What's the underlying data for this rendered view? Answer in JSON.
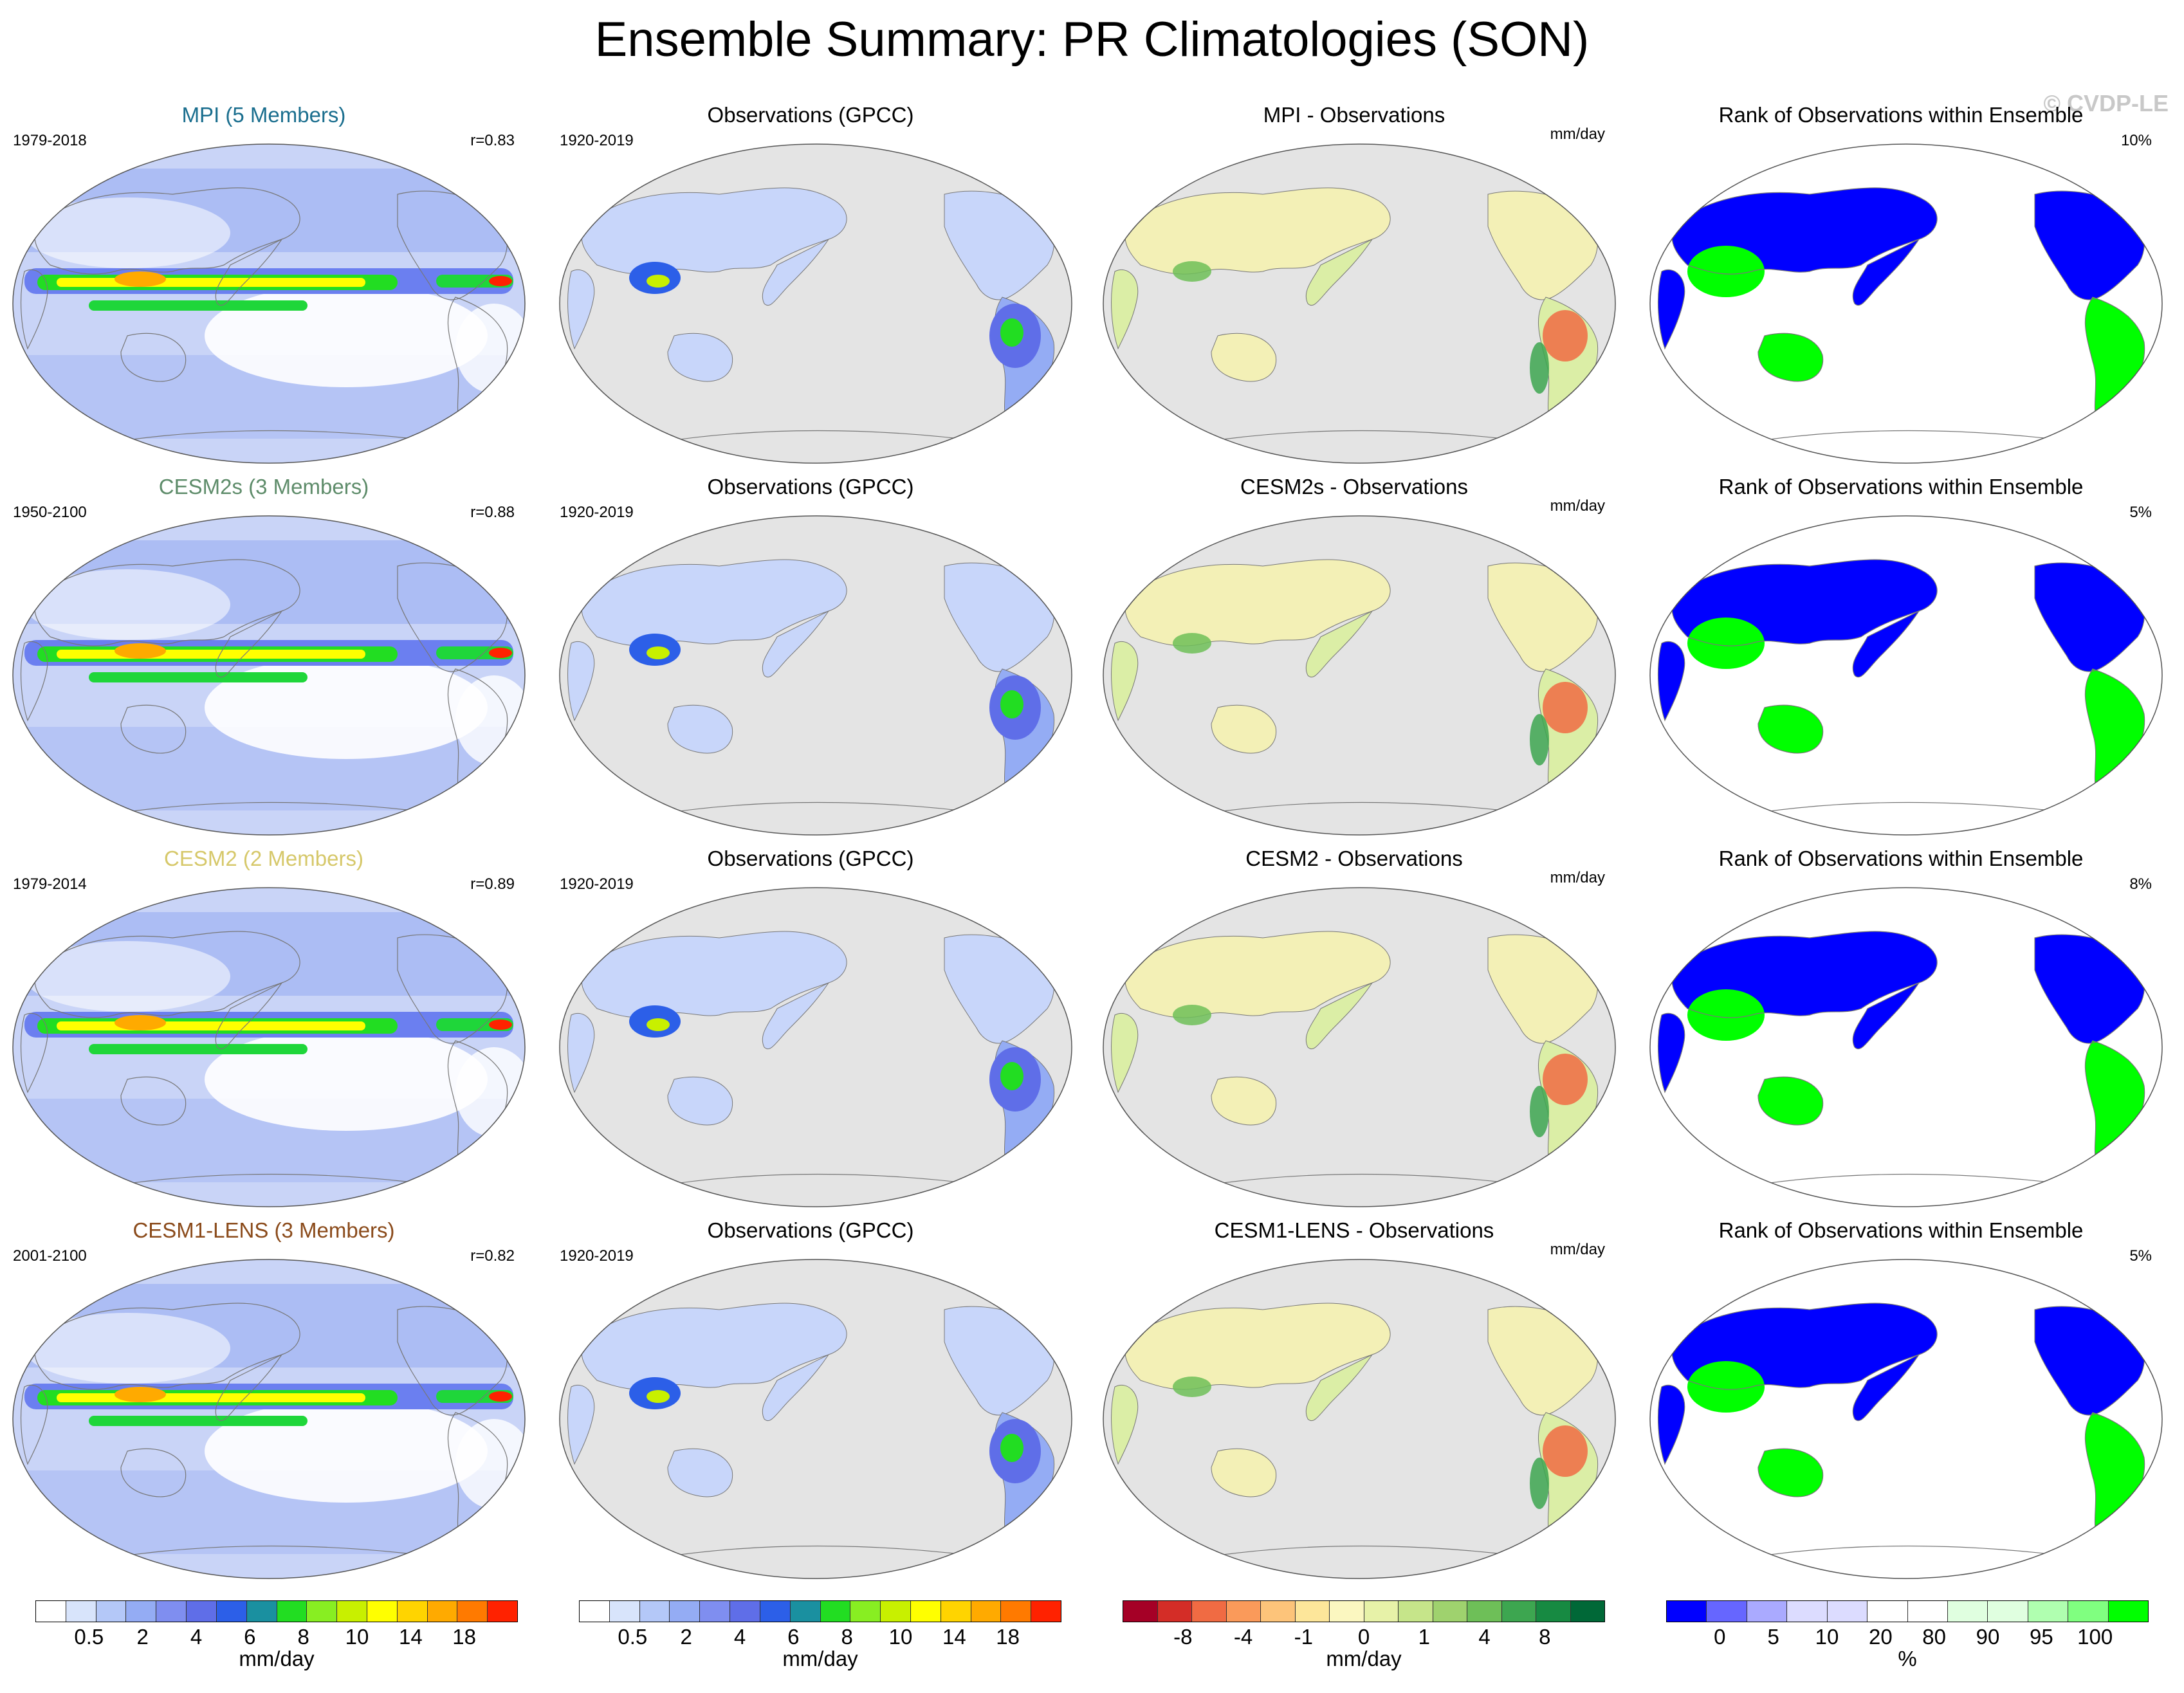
{
  "title": "Ensemble Summary: PR Climatologies (SON)",
  "copyright": "© CVDP-LE",
  "rows": [
    {
      "model_title": "MPI (5 Members)",
      "model_color": "#1a6e8e",
      "model_years": "1979-2018",
      "r_value": "r=0.83",
      "obs_title": "Observations (GPCC)",
      "obs_years": "1920-2019",
      "diff_title": "MPI - Observations",
      "diff_unit": "mm/day",
      "rank_title": "Rank of Observations within Ensemble",
      "rank_pct": "10%"
    },
    {
      "model_title": "CESM2s (3 Members)",
      "model_color": "#5e8c6a",
      "model_years": "1950-2100",
      "r_value": "r=0.88",
      "obs_title": "Observations (GPCC)",
      "obs_years": "1920-2019",
      "diff_title": "CESM2s - Observations",
      "diff_unit": "mm/day",
      "rank_title": "Rank of Observations within Ensemble",
      "rank_pct": "5%"
    },
    {
      "model_title": "CESM2 (2 Members)",
      "model_color": "#d6c86a",
      "model_years": "1979-2014",
      "r_value": "r=0.89",
      "obs_title": "Observations (GPCC)",
      "obs_years": "1920-2019",
      "diff_title": "CESM2 - Observations",
      "diff_unit": "mm/day",
      "rank_title": "Rank of Observations within Ensemble",
      "rank_pct": "8%"
    },
    {
      "model_title": "CESM1-LENS (3 Members)",
      "model_color": "#8a4a1a",
      "model_years": "2001-2100",
      "r_value": "r=0.82",
      "obs_title": "Observations (GPCC)",
      "obs_years": "1920-2019",
      "diff_title": "CESM1-LENS - Observations",
      "diff_unit": "mm/day",
      "rank_title": "Rank of Observations within Ensemble",
      "rank_pct": "5%"
    }
  ],
  "colorbars": [
    {
      "unit": "mm/day",
      "colors": [
        "#ffffff",
        "#d8e4fb",
        "#b4c8f8",
        "#94acf4",
        "#7f8ef0",
        "#5f6ee8",
        "#2c5fe8",
        "#1a90a0",
        "#22dd22",
        "#88ee22",
        "#c8f000",
        "#ffff00",
        "#ffd400",
        "#ffaa00",
        "#ff7a00",
        "#ff2200"
      ],
      "labels": [
        "0.5",
        "2",
        "4",
        "6",
        "8",
        "10",
        "14",
        "18"
      ]
    },
    {
      "unit": "mm/day",
      "colors": [
        "#ffffff",
        "#d8e4fb",
        "#b4c8f8",
        "#94acf4",
        "#7f8ef0",
        "#5f6ee8",
        "#2c5fe8",
        "#1a90a0",
        "#22dd22",
        "#88ee22",
        "#c8f000",
        "#ffff00",
        "#ffd400",
        "#ffaa00",
        "#ff7a00",
        "#ff2200"
      ],
      "labels": [
        "0.5",
        "2",
        "4",
        "6",
        "8",
        "10",
        "14",
        "18"
      ]
    },
    {
      "unit": "mm/day",
      "colors": [
        "#a50026",
        "#d42d27",
        "#f06b43",
        "#fa9a5a",
        "#fdc47a",
        "#fde69a",
        "#fbf7c0",
        "#e7f2a8",
        "#c6e58a",
        "#9fd26e",
        "#6ebf58",
        "#3da650",
        "#178a42",
        "#006837"
      ],
      "labels": [
        "-8",
        "-4",
        "-1",
        "0",
        "1",
        "4",
        "8"
      ]
    },
    {
      "unit": "%",
      "colors": [
        "#0000ff",
        "#6666ff",
        "#aaaaff",
        "#dcdcff",
        "#dcdcff",
        "#ffffff",
        "#ffffff",
        "#e0ffe0",
        "#e0ffe0",
        "#b0ffb0",
        "#80ff80",
        "#00ff00"
      ],
      "labels": [
        "0",
        "5",
        "10",
        "20",
        "80",
        "90",
        "95",
        "100"
      ]
    }
  ],
  "map_style": {
    "land_obs": "#ffffff",
    "ocean_obs": "#e4e4e4",
    "pacific_wet": "#1fd63a",
    "rank_low": "#0000ff",
    "rank_high": "#00ff00"
  }
}
